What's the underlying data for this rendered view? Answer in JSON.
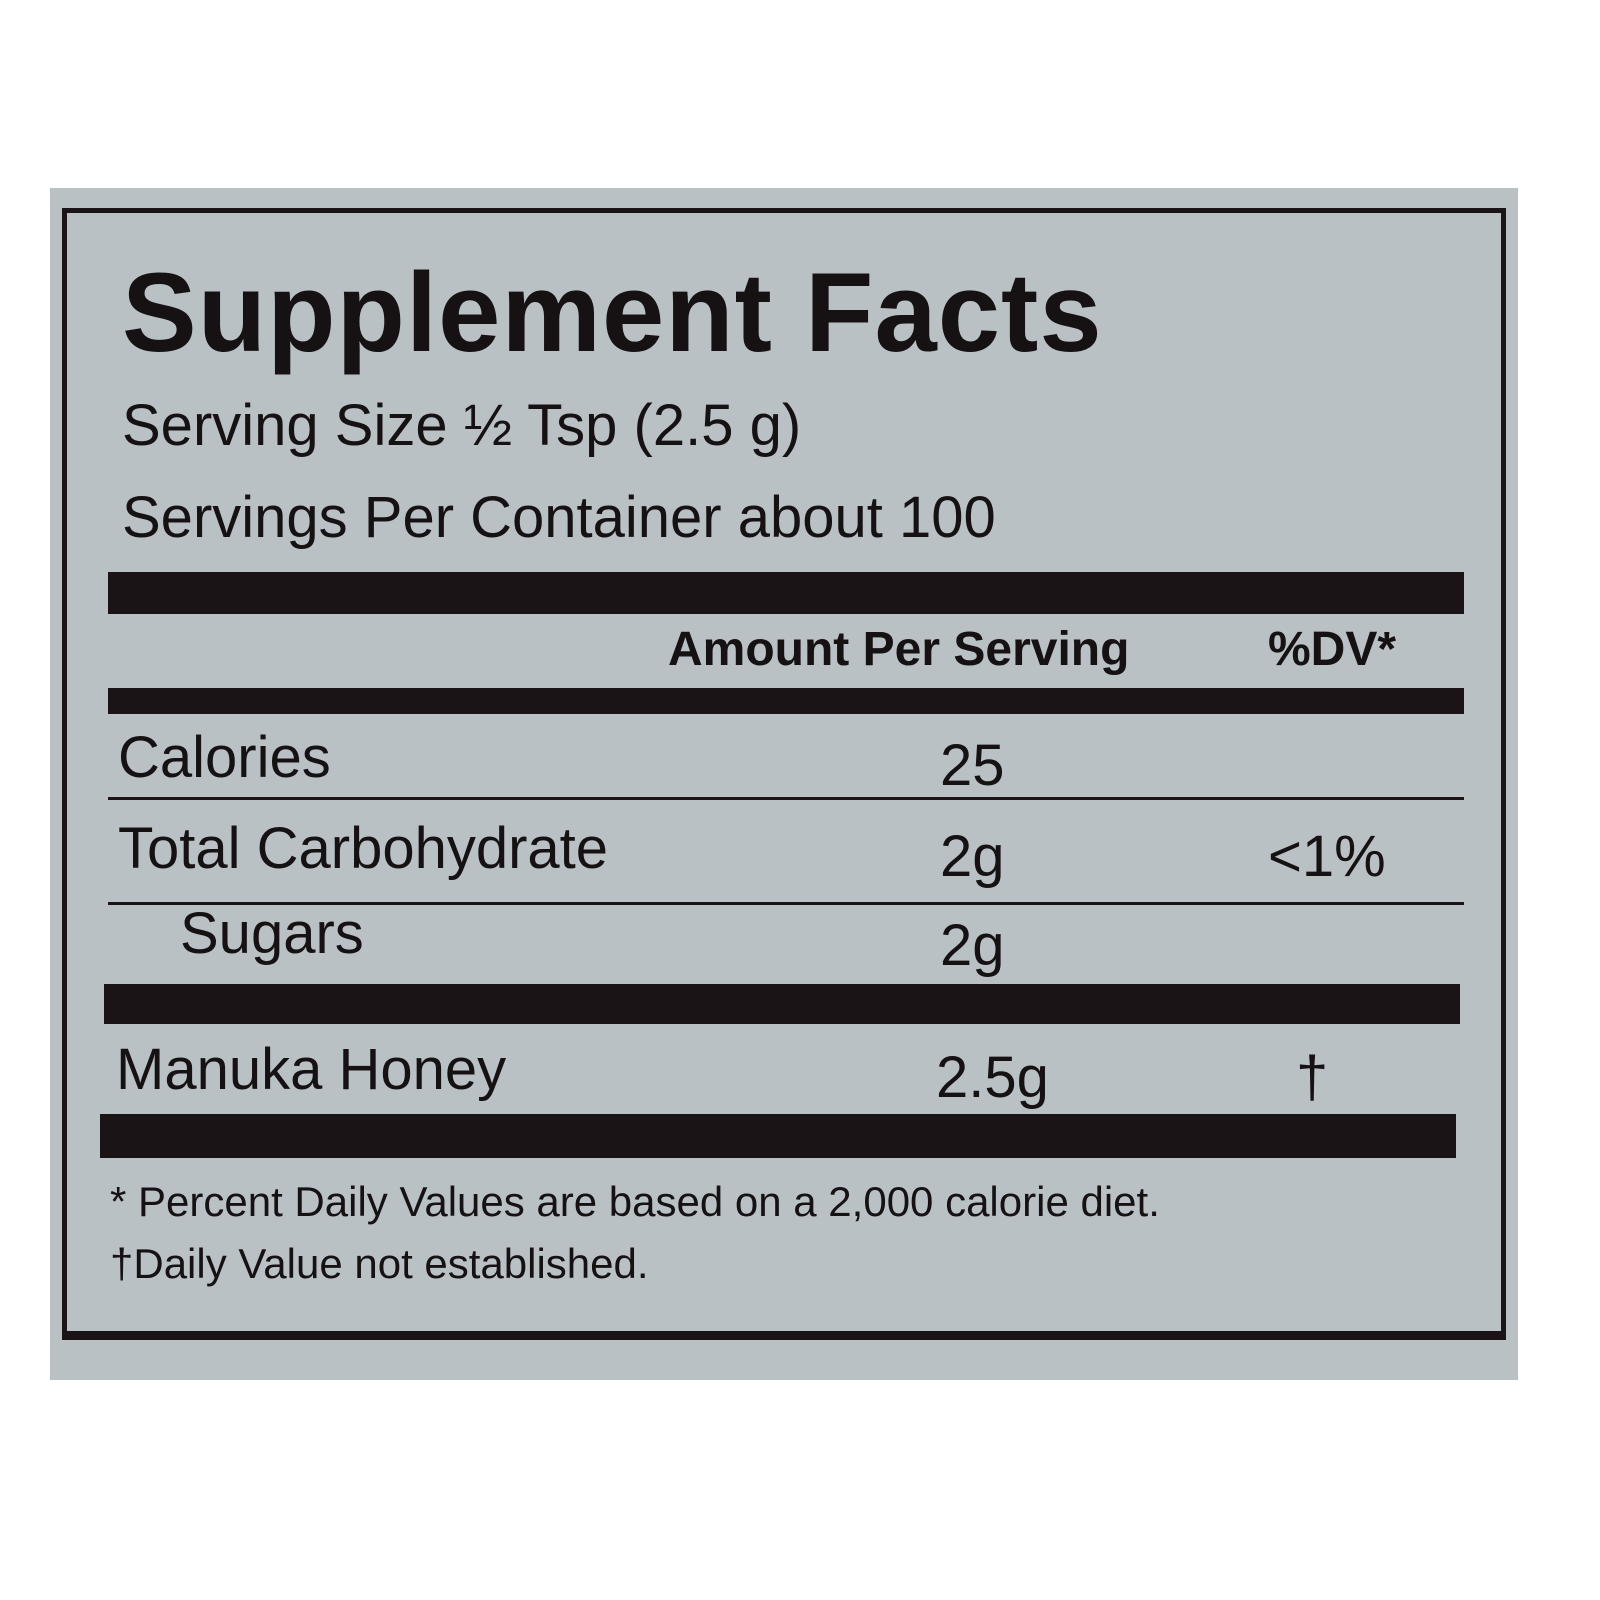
{
  "label": {
    "title": "Supplement Facts",
    "serving_size": "Serving Size ½ Tsp (2.5 g)",
    "servings_per_container": "Servings Per Container about 100",
    "header": {
      "amount": "Amount Per Serving",
      "dv": "%DV*"
    },
    "rows": [
      {
        "name": "Calories",
        "amount": "25",
        "dv": ""
      },
      {
        "name": "Total Carbohydrate",
        "amount": "2g",
        "dv": "<1%"
      },
      {
        "name": "Sugars",
        "amount": "2g",
        "dv": ""
      },
      {
        "name": "Manuka Honey",
        "amount": "2.5g",
        "dv": "†"
      }
    ],
    "footnotes": [
      "* Percent Daily Values are based on a 2,000 calorie diet.",
      "†Daily Value not established."
    ]
  },
  "colors": {
    "label_background": "#b9c1c5",
    "ink": "#1a1416"
  }
}
